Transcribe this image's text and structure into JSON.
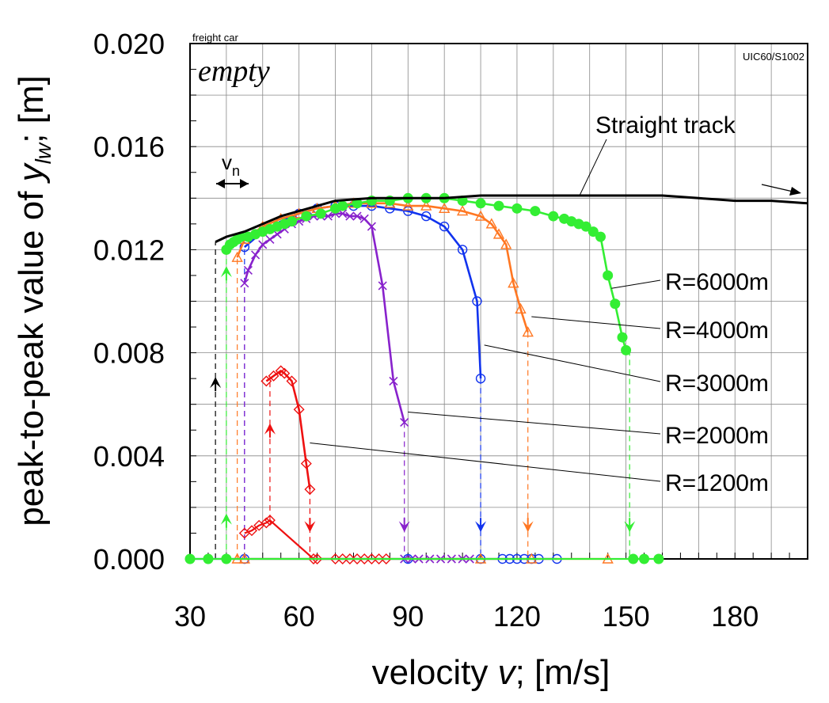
{
  "labels": {
    "corner_small": "freight car",
    "corner_mode": "empty",
    "profile": "UIC60/S1002",
    "vn": "v",
    "vn_sub": "n",
    "straight": "Straight track",
    "xlabel_pre": "velocity ",
    "xlabel_var": "v",
    "xlabel_post": "; [m/s]",
    "ylabel_pre": "peak-to-peak value of ",
    "ylabel_var": "y",
    "ylabel_sub": "lw",
    "ylabel_post": "; [m]"
  },
  "chart_data": {
    "type": "line",
    "xlim": [
      30,
      200
    ],
    "ylim": [
      0,
      0.02
    ],
    "grid": true,
    "x_ticks": [
      "30",
      "60",
      "90",
      "120",
      "150",
      "180"
    ],
    "x_tick_values": [
      30,
      60,
      90,
      120,
      150,
      180
    ],
    "y_ticks": [
      "0.000",
      "0.004",
      "0.008",
      "0.012",
      "0.016",
      "0.020"
    ],
    "y_tick_values": [
      0,
      0.004,
      0.008,
      0.012,
      0.016,
      0.02
    ],
    "xlabel": "velocity v; [m/s]",
    "ylabel": "peak-to-peak value of y_lw; [m]",
    "series": [
      {
        "name": "Straight track",
        "color": "#000000",
        "marker": "none",
        "points": [
          [
            37,
            0.0123
          ],
          [
            40,
            0.0125
          ],
          [
            45,
            0.0127
          ],
          [
            50,
            0.013
          ],
          [
            55,
            0.0133
          ],
          [
            60,
            0.0135
          ],
          [
            65,
            0.0137
          ],
          [
            70,
            0.0139
          ],
          [
            80,
            0.014
          ],
          [
            90,
            0.014
          ],
          [
            100,
            0.014
          ],
          [
            110,
            0.0141
          ],
          [
            120,
            0.0141
          ],
          [
            130,
            0.0141
          ],
          [
            140,
            0.0141
          ],
          [
            150,
            0.0141
          ],
          [
            160,
            0.0141
          ],
          [
            170,
            0.014
          ],
          [
            180,
            0.0139
          ],
          [
            190,
            0.0139
          ],
          [
            200,
            0.0138
          ]
        ]
      },
      {
        "name": "R=6000m",
        "color": "#33ee33",
        "marker": "dot",
        "upper": [
          [
            40,
            0.012
          ],
          [
            41,
            0.0122
          ],
          [
            42,
            0.0123
          ],
          [
            43,
            0.0124
          ],
          [
            44,
            0.0125
          ],
          [
            46,
            0.0125
          ],
          [
            48,
            0.0126
          ],
          [
            50,
            0.0127
          ],
          [
            52,
            0.0128
          ],
          [
            54,
            0.0129
          ],
          [
            56,
            0.013
          ],
          [
            58,
            0.0131
          ],
          [
            62,
            0.0133
          ],
          [
            66,
            0.0134
          ],
          [
            70,
            0.0136
          ],
          [
            72,
            0.0137
          ],
          [
            76,
            0.0138
          ],
          [
            80,
            0.0139
          ],
          [
            85,
            0.0139
          ],
          [
            90,
            0.014
          ],
          [
            95,
            0.014
          ],
          [
            100,
            0.014
          ],
          [
            105,
            0.0139
          ],
          [
            110,
            0.0138
          ],
          [
            115,
            0.0137
          ],
          [
            120,
            0.0136
          ],
          [
            125,
            0.0135
          ],
          [
            130,
            0.0133
          ],
          [
            133,
            0.0132
          ],
          [
            135,
            0.0131
          ],
          [
            137,
            0.013
          ],
          [
            139,
            0.0129
          ],
          [
            141,
            0.0127
          ],
          [
            143,
            0.0125
          ],
          [
            145,
            0.011
          ],
          [
            147,
            0.0099
          ],
          [
            149,
            0.0086
          ],
          [
            150,
            0.0081
          ]
        ],
        "lower": [
          [
            30,
            0.0
          ],
          [
            35,
            0.0
          ],
          [
            40,
            0.0
          ],
          [
            152,
            0.0
          ],
          [
            155,
            0.0
          ],
          [
            159,
            0.0
          ]
        ]
      },
      {
        "name": "R=4000m",
        "color": "#ff7722",
        "marker": "triangle",
        "upper": [
          [
            43,
            0.0117
          ],
          [
            45,
            0.0124
          ],
          [
            50,
            0.0129
          ],
          [
            55,
            0.0132
          ],
          [
            60,
            0.0134
          ],
          [
            65,
            0.0136
          ],
          [
            70,
            0.0137
          ],
          [
            75,
            0.0138
          ],
          [
            80,
            0.0138
          ],
          [
            85,
            0.0138
          ],
          [
            90,
            0.0137
          ],
          [
            95,
            0.0137
          ],
          [
            100,
            0.0136
          ],
          [
            105,
            0.0135
          ],
          [
            110,
            0.0133
          ],
          [
            113,
            0.013
          ],
          [
            115,
            0.0126
          ],
          [
            117,
            0.0122
          ],
          [
            119,
            0.0107
          ],
          [
            121,
            0.0097
          ],
          [
            123,
            0.0088
          ]
        ],
        "lower": [
          [
            43,
            0.0
          ],
          [
            45,
            0.0
          ],
          [
            110,
            0.0
          ],
          [
            124,
            0.0
          ],
          [
            145,
            0.0
          ]
        ]
      },
      {
        "name": "R=3000m",
        "color": "#1133ee",
        "marker": "circle",
        "upper": [
          [
            45,
            0.0121
          ],
          [
            50,
            0.0127
          ],
          [
            55,
            0.0131
          ],
          [
            60,
            0.0134
          ],
          [
            65,
            0.0136
          ],
          [
            70,
            0.0137
          ],
          [
            75,
            0.0137
          ],
          [
            80,
            0.0137
          ],
          [
            85,
            0.0136
          ],
          [
            90,
            0.0135
          ],
          [
            95,
            0.0133
          ],
          [
            100,
            0.0129
          ],
          [
            105,
            0.012
          ],
          [
            109,
            0.01
          ],
          [
            110,
            0.007
          ]
        ],
        "lower": [
          [
            30,
            0.0
          ],
          [
            35,
            0.0
          ],
          [
            40,
            0.0
          ],
          [
            45,
            0.0
          ],
          [
            90,
            0.0
          ],
          [
            110,
            0.0
          ],
          [
            116,
            0.0
          ],
          [
            118,
            0.0
          ],
          [
            120,
            0.0
          ],
          [
            122,
            0.0
          ],
          [
            124,
            0.0
          ],
          [
            126,
            0.0
          ],
          [
            131,
            0.0
          ]
        ]
      },
      {
        "name": "R=2000m",
        "color": "#8822cc",
        "marker": "x",
        "upper": [
          [
            45,
            0.0107
          ],
          [
            46,
            0.0112
          ],
          [
            48,
            0.0118
          ],
          [
            50,
            0.0122
          ],
          [
            52,
            0.0124
          ],
          [
            54,
            0.0126
          ],
          [
            56,
            0.0128
          ],
          [
            58,
            0.013
          ],
          [
            60,
            0.0131
          ],
          [
            62,
            0.0132
          ],
          [
            64,
            0.0133
          ],
          [
            66,
            0.0133
          ],
          [
            68,
            0.0133
          ],
          [
            70,
            0.0134
          ],
          [
            72,
            0.0134
          ],
          [
            74,
            0.0133
          ],
          [
            76,
            0.0133
          ],
          [
            78,
            0.0132
          ],
          [
            80,
            0.0129
          ],
          [
            83,
            0.0106
          ],
          [
            86,
            0.0069
          ],
          [
            89,
            0.0053
          ]
        ],
        "lower": [
          [
            89,
            0.0
          ],
          [
            91,
            0.0
          ],
          [
            93,
            0.0
          ],
          [
            96,
            0.0
          ],
          [
            99,
            0.0
          ],
          [
            102,
            0.0
          ],
          [
            105,
            0.0
          ],
          [
            107,
            0.0
          ]
        ]
      },
      {
        "name": "R=1200m",
        "color": "#ee1111",
        "marker": "diamond",
        "upper": [
          [
            51,
            0.0069
          ],
          [
            53,
            0.0071
          ],
          [
            55,
            0.0073
          ],
          [
            56,
            0.0072
          ],
          [
            58,
            0.0069
          ],
          [
            60,
            0.0058
          ],
          [
            62,
            0.0037
          ],
          [
            63,
            0.0027
          ]
        ],
        "lower": [
          [
            45,
            0.001
          ],
          [
            47,
            0.0011
          ],
          [
            49,
            0.0013
          ],
          [
            51,
            0.0014
          ],
          [
            52,
            0.0015
          ],
          [
            64,
            0.0
          ],
          [
            65,
            0.0
          ],
          [
            70,
            0.0
          ],
          [
            72,
            0.0
          ],
          [
            74,
            0.0
          ],
          [
            76,
            0.0
          ],
          [
            78,
            0.0
          ],
          [
            80,
            0.0
          ],
          [
            82,
            0.0
          ],
          [
            84,
            0.0
          ]
        ]
      }
    ],
    "jumps": [
      {
        "color": "#000000",
        "x": 37,
        "from": 0.0,
        "to": 0.0123,
        "arrow_at": 0.007,
        "dir": "up"
      },
      {
        "color": "#33ee33",
        "x": 40,
        "from": 0.0,
        "to": 0.012,
        "arrow_at": 0.0113,
        "dir": "up"
      },
      {
        "color": "#33ee33",
        "x": 40,
        "from": 0.0,
        "to": 0.0,
        "arrow_at": 0.0017,
        "dir": "up"
      },
      {
        "color": "#ff7722",
        "x": 43,
        "from": 0.0,
        "to": 0.0117,
        "arrow_at": null,
        "dir": "up"
      },
      {
        "color": "#1133ee",
        "x": 45,
        "from": 0.0,
        "to": 0.0121,
        "arrow_at": null,
        "dir": "up"
      },
      {
        "color": "#8822cc",
        "x": 45,
        "from": 0.0,
        "to": 0.0107,
        "arrow_at": null,
        "dir": "up"
      },
      {
        "color": "#ee1111",
        "x": 52,
        "from": 0.0015,
        "to": 0.0069,
        "arrow_at": 0.0052,
        "dir": "up"
      },
      {
        "color": "#ee1111",
        "x": 63,
        "from": 0.0027,
        "to": 0.0,
        "arrow_at": 0.0011,
        "dir": "down"
      },
      {
        "color": "#8822cc",
        "x": 89,
        "from": 0.0053,
        "to": 0.0,
        "arrow_at": 0.0011,
        "dir": "down"
      },
      {
        "color": "#1133ee",
        "x": 110,
        "from": 0.007,
        "to": 0.0,
        "arrow_at": 0.0011,
        "dir": "down"
      },
      {
        "color": "#ff7722",
        "x": 123,
        "from": 0.0088,
        "to": 0.0,
        "arrow_at": 0.0011,
        "dir": "down"
      },
      {
        "color": "#33ee33",
        "x": 151,
        "from": 0.0081,
        "to": 0.0,
        "arrow_at": 0.0011,
        "dir": "down"
      }
    ],
    "annotations": [
      {
        "text": "R=6000m",
        "point": [
          146,
          0.0105
        ]
      },
      {
        "text": "R=4000m",
        "point": [
          124,
          0.0094
        ]
      },
      {
        "text": "R=3000m",
        "point": [
          111,
          0.0083
        ]
      },
      {
        "text": "R=2000m",
        "point": [
          90,
          0.0057
        ]
      },
      {
        "text": "R=1200m",
        "point": [
          63,
          0.0045
        ]
      }
    ]
  }
}
